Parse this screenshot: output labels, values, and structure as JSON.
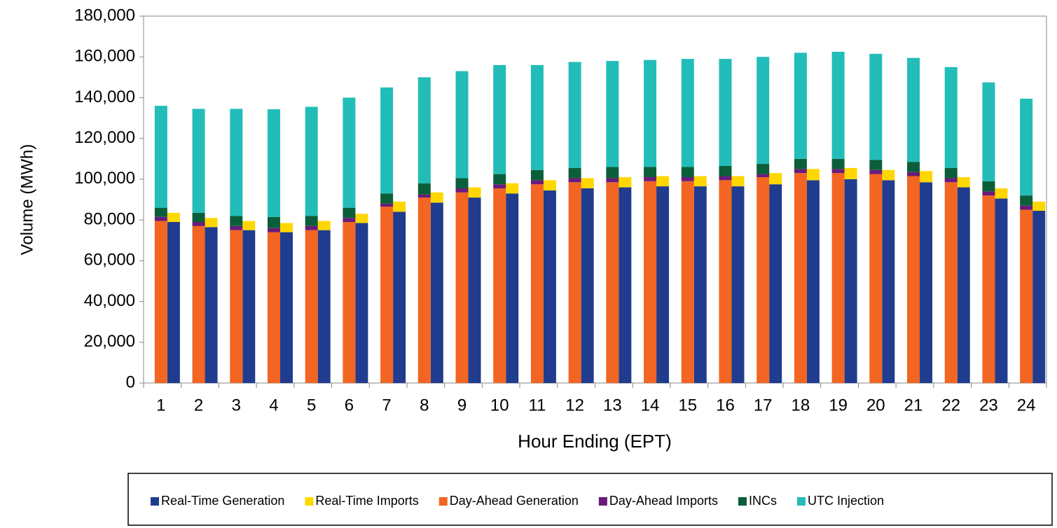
{
  "chart_data": {
    "type": "grouped-stacked-bar",
    "x_label": "Hour Ending (EPT)",
    "y_label": "Volume (MWh)",
    "categories": [
      "1",
      "2",
      "3",
      "4",
      "5",
      "6",
      "7",
      "8",
      "9",
      "10",
      "11",
      "12",
      "13",
      "14",
      "15",
      "16",
      "17",
      "18",
      "19",
      "20",
      "21",
      "22",
      "23",
      "24"
    ],
    "ylim": [
      0,
      180000
    ],
    "yticks": [
      0,
      {
        "value": 20000,
        "label": "20,000"
      },
      {
        "value": 40000,
        "label": "40,000"
      },
      {
        "value": 60000,
        "label": "60,000"
      },
      {
        "value": 80000,
        "label": "80,000"
      },
      {
        "value": 100000,
        "label": "100,000"
      },
      {
        "value": 120000,
        "label": "120,000"
      },
      {
        "value": 140000,
        "label": "140,000"
      },
      {
        "value": 160000,
        "label": "160,000"
      },
      {
        "value": 180000,
        "label": "180,000"
      }
    ],
    "grid": false,
    "legend": "bottom",
    "series": [
      {
        "name": "Real-Time Generation",
        "color": "#203c8e",
        "group": "right",
        "values": [
          79000,
          76500,
          75000,
          74000,
          75000,
          78500,
          84000,
          88500,
          91000,
          93000,
          94500,
          95500,
          96000,
          96500,
          96500,
          96500,
          97500,
          99500,
          100000,
          99500,
          98500,
          96000,
          90500,
          84500
        ]
      },
      {
        "name": "Real-Time Imports",
        "color": "#ffd700",
        "group": "right",
        "values": [
          4500,
          4500,
          4500,
          4500,
          4500,
          4500,
          5000,
          5000,
          5000,
          5000,
          5000,
          5000,
          5000,
          5000,
          5000,
          5000,
          5500,
          5500,
          5500,
          5000,
          5500,
          5000,
          5000,
          4500
        ]
      },
      {
        "name": "Day-Ahead Generation",
        "color": "#f26522",
        "group": "left",
        "values": [
          79500,
          77000,
          75000,
          74000,
          75000,
          79000,
          86500,
          91000,
          93500,
          95500,
          97500,
          98500,
          98500,
          99000,
          99000,
          99500,
          101000,
          103000,
          103000,
          102500,
          101500,
          98500,
          92000,
          85000
        ]
      },
      {
        "name": "Day-Ahead Imports",
        "color": "#6a1b7a",
        "group": "left",
        "values": [
          2000,
          2000,
          2000,
          2000,
          2000,
          2000,
          1500,
          1500,
          2000,
          2000,
          2000,
          2000,
          2000,
          2000,
          2000,
          2000,
          1500,
          2000,
          2000,
          2000,
          2000,
          2000,
          2000,
          2000
        ]
      },
      {
        "name": "INCs",
        "color": "#0b5e3a",
        "group": "left",
        "values": [
          4500,
          4500,
          5000,
          5500,
          5000,
          5000,
          5000,
          5500,
          5000,
          5000,
          5000,
          5000,
          5500,
          5000,
          5000,
          5000,
          5000,
          5000,
          5000,
          5000,
          5000,
          5000,
          5000,
          5000
        ]
      },
      {
        "name": "UTC Injection",
        "color": "#22bdb8",
        "group": "left",
        "values": [
          50000,
          51000,
          52500,
          52800,
          53500,
          54000,
          52000,
          52000,
          52500,
          53500,
          51500,
          52000,
          52000,
          52500,
          53000,
          52500,
          52500,
          52000,
          52500,
          52000,
          51000,
          49500,
          48500,
          47500
        ]
      }
    ]
  }
}
